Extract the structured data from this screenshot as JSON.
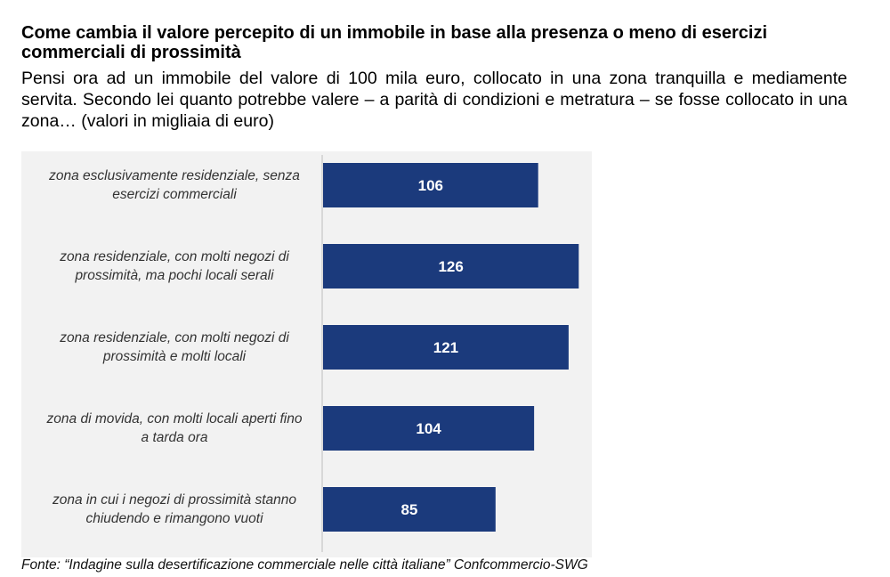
{
  "title": "Come cambia il valore percepito di un immobile in base alla presenza o meno di esercizi commerciali di prossimità",
  "subtitle": "Pensi ora ad un immobile del valore di 100 mila euro, collocato in una zona tranquilla e mediamente servita. Secondo lei quanto potrebbe valere – a parità di condizioni e metratura – se fosse collocato in una zona… (valori in migliaia di euro)",
  "source": "Fonte: “Indagine sulla desertificazione commerciale nelle città italiane” Confcommercio-SWG",
  "colors": {
    "bar": "#1b3a7c",
    "panel": "#f2f2f2",
    "axis": "#bfbfbf"
  },
  "chart_data": {
    "type": "bar",
    "orientation": "horizontal",
    "categories": [
      [
        "zona esclusivamente residenziale, senza",
        "esercizi commerciali"
      ],
      [
        "zona residenziale, con molti negozi di",
        "prossimità, ma pochi locali serali"
      ],
      [
        "zona residenziale, con molti negozi di",
        "prossimità e molti locali"
      ],
      [
        "zona di movida, con molti locali aperti fino",
        "a tarda ora"
      ],
      [
        "zona in cui i negozi di prossimità stanno",
        "chiudendo e rimangono vuoti"
      ]
    ],
    "values": [
      106,
      126,
      121,
      104,
      85
    ],
    "title": "",
    "xlabel": "",
    "ylabel": "",
    "xlim": [
      0,
      130
    ],
    "grid": false,
    "legend": "none"
  }
}
